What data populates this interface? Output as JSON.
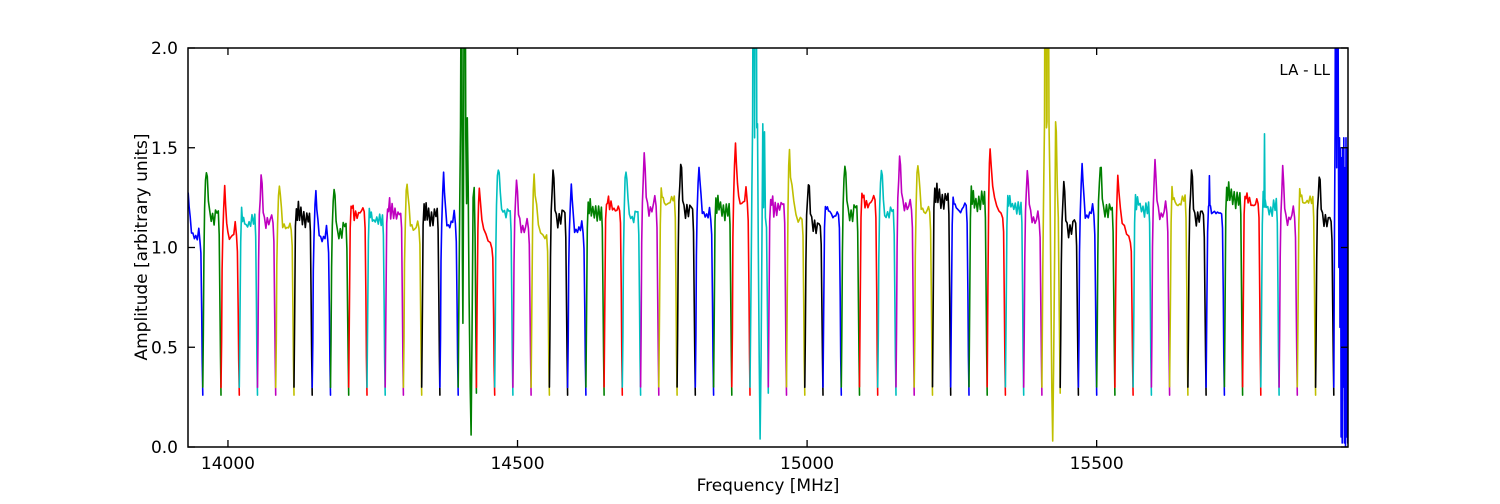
{
  "figure": {
    "background": "#ffffff",
    "frame_color": "#000000"
  },
  "chart_data": {
    "type": "line",
    "title": "",
    "xlabel": "Frequency [MHz]",
    "ylabel": "Amplitude [arbitrary units]",
    "annotation": "LA - LL",
    "xlim": [
      13931,
      15934
    ],
    "ylim": [
      0.0,
      2.0
    ],
    "xticks": [
      14000,
      14500,
      15000,
      15500
    ],
    "yticks": [
      "0.0",
      "0.5",
      "1.0",
      "1.5",
      "2.0"
    ],
    "grid": false,
    "legend": "none",
    "band_start_mhz": 13925,
    "band_width_mhz": 31.5,
    "color_cycle": {
      "b": "#0000ff",
      "g": "#008000",
      "r": "#ff0000",
      "c": "#00bfbf",
      "m": "#bf00bf",
      "y": "#bfbf00",
      "k": "#000000"
    },
    "profiles": {
      "dome": [
        [
          0,
          0.3
        ],
        [
          0.03,
          0.55
        ],
        [
          0.06,
          0.95
        ],
        [
          0.1,
          1.17
        ],
        [
          0.15,
          1.3
        ],
        [
          0.2,
          1.38
        ],
        [
          0.25,
          1.33
        ],
        [
          0.31,
          1.22
        ],
        [
          0.38,
          1.16
        ],
        [
          0.46,
          1.13
        ],
        [
          0.54,
          1.15
        ],
        [
          0.62,
          1.13
        ],
        [
          0.7,
          1.16
        ],
        [
          0.78,
          1.18
        ],
        [
          0.85,
          1.15
        ],
        [
          0.9,
          1.05
        ],
        [
          0.94,
          0.72
        ],
        [
          0.97,
          0.45
        ],
        [
          1,
          0.26
        ]
      ],
      "flat": [
        [
          0,
          0.3
        ],
        [
          0.04,
          0.68
        ],
        [
          0.08,
          1.08
        ],
        [
          0.13,
          1.2
        ],
        [
          0.18,
          1.16
        ],
        [
          0.24,
          1.2
        ],
        [
          0.3,
          1.14
        ],
        [
          0.38,
          1.17
        ],
        [
          0.46,
          1.13
        ],
        [
          0.54,
          1.16
        ],
        [
          0.62,
          1.13
        ],
        [
          0.7,
          1.17
        ],
        [
          0.78,
          1.15
        ],
        [
          0.85,
          1.17
        ],
        [
          0.9,
          1.08
        ],
        [
          0.94,
          0.75
        ],
        [
          0.97,
          0.45
        ],
        [
          1,
          0.26
        ]
      ],
      "saw": [
        [
          0,
          0.3
        ],
        [
          0.04,
          0.75
        ],
        [
          0.08,
          1.15
        ],
        [
          0.12,
          1.32
        ],
        [
          0.16,
          1.38
        ],
        [
          0.22,
          1.3
        ],
        [
          0.3,
          1.22
        ],
        [
          0.4,
          1.16
        ],
        [
          0.52,
          1.12
        ],
        [
          0.64,
          1.08
        ],
        [
          0.76,
          1.06
        ],
        [
          0.85,
          1.08
        ],
        [
          0.9,
          1.0
        ],
        [
          0.94,
          0.7
        ],
        [
          0.97,
          0.42
        ],
        [
          1,
          0.26
        ]
      ]
    },
    "anomalies": {
      "g15": [
        [
          0,
          0.3
        ],
        [
          0.05,
          0.85
        ],
        [
          0.09,
          1.25
        ],
        [
          0.13,
          1.6
        ],
        [
          0.17,
          2.6
        ],
        [
          0.2,
          2.4
        ],
        [
          0.23,
          0.95
        ],
        [
          0.26,
          0.62
        ],
        [
          0.3,
          1.4
        ],
        [
          0.34,
          2.9
        ],
        [
          0.38,
          2.6
        ],
        [
          0.42,
          1.55
        ],
        [
          0.46,
          1.22
        ],
        [
          0.5,
          1.65
        ],
        [
          0.55,
          1.3
        ],
        [
          0.6,
          0.75
        ],
        [
          0.66,
          0.3
        ],
        [
          0.71,
          0.06
        ],
        [
          0.76,
          0.55
        ],
        [
          0.82,
          1.25
        ],
        [
          0.88,
          1.3
        ],
        [
          0.93,
          1.05
        ],
        [
          0.97,
          0.55
        ],
        [
          1,
          0.27
        ]
      ],
      "c31": [
        [
          0,
          0.3
        ],
        [
          0.05,
          0.8
        ],
        [
          0.1,
          1.3
        ],
        [
          0.14,
          1.62
        ],
        [
          0.18,
          2.8
        ],
        [
          0.22,
          2.6
        ],
        [
          0.25,
          1.55
        ],
        [
          0.28,
          2.9
        ],
        [
          0.33,
          2.7
        ],
        [
          0.37,
          1.6
        ],
        [
          0.41,
          1.62
        ],
        [
          0.45,
          1.0
        ],
        [
          0.5,
          0.45
        ],
        [
          0.55,
          0.04
        ],
        [
          0.6,
          0.4
        ],
        [
          0.65,
          1.0
        ],
        [
          0.7,
          1.62
        ],
        [
          0.74,
          1.2
        ],
        [
          0.79,
          1.58
        ],
        [
          0.84,
          1.15
        ],
        [
          0.9,
          1.1
        ],
        [
          0.95,
          0.7
        ],
        [
          1,
          0.27
        ]
      ],
      "y47": [
        [
          0,
          0.3
        ],
        [
          0.05,
          0.9
        ],
        [
          0.1,
          1.35
        ],
        [
          0.14,
          1.62
        ],
        [
          0.18,
          2.9
        ],
        [
          0.22,
          2.7
        ],
        [
          0.25,
          1.6
        ],
        [
          0.28,
          1.63
        ],
        [
          0.31,
          2.95
        ],
        [
          0.35,
          2.75
        ],
        [
          0.39,
          1.62
        ],
        [
          0.44,
          1.3
        ],
        [
          0.49,
          0.8
        ],
        [
          0.54,
          0.3
        ],
        [
          0.59,
          0.03
        ],
        [
          0.64,
          0.4
        ],
        [
          0.7,
          1.0
        ],
        [
          0.75,
          1.63
        ],
        [
          0.79,
          1.58
        ],
        [
          0.84,
          1.3
        ],
        [
          0.9,
          1.15
        ],
        [
          0.95,
          0.65
        ],
        [
          1,
          0.27
        ]
      ],
      "b63": [
        [
          0,
          0.3
        ],
        [
          0.04,
          1.1
        ],
        [
          0.07,
          1.6
        ],
        [
          0.1,
          2.85
        ],
        [
          0.13,
          2.6
        ],
        [
          0.16,
          1.4
        ],
        [
          0.19,
          2.9
        ],
        [
          0.22,
          2.7
        ],
        [
          0.25,
          1.55
        ],
        [
          0.28,
          0.9
        ],
        [
          0.31,
          1.55
        ],
        [
          0.34,
          0.6
        ],
        [
          0.37,
          1.5
        ],
        [
          0.4,
          0.05
        ],
        [
          0.43,
          1.45
        ],
        [
          0.46,
          0.02
        ],
        [
          0.49,
          1.5
        ],
        [
          0.52,
          0.3
        ],
        [
          0.55,
          1.55
        ],
        [
          0.58,
          0.02
        ],
        [
          0.61,
          1.4
        ],
        [
          0.64,
          0.0
        ],
        [
          0.67,
          1.55
        ],
        [
          0.7,
          0.05
        ],
        [
          0.73,
          1.5
        ],
        [
          0.76,
          0.02
        ],
        [
          0.79,
          1.58
        ],
        [
          0.82,
          0.6
        ]
      ]
    },
    "segments": [
      {
        "color": "b",
        "profile": "dome",
        "peak": 1.27
      },
      {
        "color": "g",
        "profile": "dome",
        "peak": 1.4
      },
      {
        "color": "r",
        "profile": "dome",
        "peak": 1.28
      },
      {
        "color": "c",
        "profile": "flat",
        "peak": 1.17
      },
      {
        "color": "m",
        "profile": "dome",
        "peak": 1.35
      },
      {
        "color": "y",
        "profile": "dome",
        "peak": 1.32
      },
      {
        "color": "k",
        "profile": "flat",
        "peak": 1.2
      },
      {
        "color": "b",
        "profile": "dome",
        "peak": 1.27
      },
      {
        "color": "g",
        "profile": "dome",
        "peak": 1.3
      },
      {
        "color": "r",
        "profile": "flat",
        "peak": 1.22
      },
      {
        "color": "c",
        "profile": "flat",
        "peak": 1.18
      },
      {
        "color": "m",
        "profile": "flat",
        "peak": 1.22
      },
      {
        "color": "y",
        "profile": "dome",
        "peak": 1.33
      },
      {
        "color": "k",
        "profile": "flat",
        "peak": 1.21
      },
      {
        "color": "b",
        "profile": "dome",
        "peak": 1.35
      },
      {
        "color": "g",
        "anomaly": "g15"
      },
      {
        "color": "r",
        "profile": "saw",
        "peak": 1.3
      },
      {
        "color": "c",
        "profile": "dome",
        "peak": 1.42
      },
      {
        "color": "m",
        "profile": "dome",
        "peak": 1.33
      },
      {
        "color": "y",
        "profile": "saw",
        "peak": 1.35
      },
      {
        "color": "k",
        "profile": "dome",
        "peak": 1.38
      },
      {
        "color": "b",
        "profile": "dome",
        "peak": 1.3
      },
      {
        "color": "g",
        "profile": "flat",
        "peak": 1.22
      },
      {
        "color": "r",
        "profile": "flat",
        "peak": 1.25
      },
      {
        "color": "c",
        "profile": "dome",
        "peak": 1.4
      },
      {
        "color": "m",
        "profile": "dome",
        "peak": 1.45
      },
      {
        "color": "y",
        "profile": "flat",
        "peak": 1.28
      },
      {
        "color": "k",
        "profile": "dome",
        "peak": 1.42
      },
      {
        "color": "b",
        "profile": "dome",
        "peak": 1.4
      },
      {
        "color": "g",
        "profile": "flat",
        "peak": 1.24
      },
      {
        "color": "r",
        "profile": "dome",
        "peak": 1.5
      },
      {
        "color": "c",
        "anomaly": "c31"
      },
      {
        "color": "m",
        "profile": "flat",
        "peak": 1.25
      },
      {
        "color": "y",
        "profile": "saw",
        "peak": 1.47
      },
      {
        "color": "k",
        "profile": "dome",
        "peak": 1.33
      },
      {
        "color": "b",
        "profile": "flat",
        "peak": 1.22
      },
      {
        "color": "g",
        "profile": "dome",
        "peak": 1.42
      },
      {
        "color": "r",
        "profile": "flat",
        "peak": 1.28
      },
      {
        "color": "c",
        "profile": "dome",
        "peak": 1.4
      },
      {
        "color": "m",
        "profile": "dome",
        "peak": 1.45
      },
      {
        "color": "y",
        "profile": "dome",
        "peak": 1.43
      },
      {
        "color": "k",
        "profile": "flat",
        "peak": 1.3
      },
      {
        "color": "b",
        "profile": "flat",
        "peak": 1.25
      },
      {
        "color": "g",
        "profile": "flat",
        "peak": 1.28
      },
      {
        "color": "r",
        "profile": "saw",
        "peak": 1.5
      },
      {
        "color": "c",
        "profile": "flat",
        "peak": 1.25
      },
      {
        "color": "m",
        "profile": "dome",
        "peak": 1.38
      },
      {
        "color": "y",
        "anomaly": "y47"
      },
      {
        "color": "k",
        "profile": "dome",
        "peak": 1.32
      },
      {
        "color": "b",
        "profile": "dome",
        "peak": 1.4
      },
      {
        "color": "g",
        "profile": "dome",
        "peak": 1.42
      },
      {
        "color": "r",
        "profile": "saw",
        "peak": 1.35
      },
      {
        "color": "c",
        "profile": "flat",
        "peak": 1.25
      },
      {
        "color": "m",
        "profile": "dome",
        "peak": 1.42
      },
      {
        "color": "y",
        "profile": "flat",
        "peak": 1.28
      },
      {
        "color": "k",
        "profile": "dome",
        "peak": 1.38
      },
      {
        "color": "b",
        "profile": "flat",
        "peak": 1.22,
        "spike": [
          0.18,
          1.36
        ]
      },
      {
        "color": "g",
        "profile": "flat",
        "peak": 1.3
      },
      {
        "color": "r",
        "profile": "flat",
        "peak": 1.28
      },
      {
        "color": "c",
        "profile": "flat",
        "peak": 1.25,
        "spike": [
          0.2,
          1.57
        ]
      },
      {
        "color": "m",
        "profile": "dome",
        "peak": 1.38
      },
      {
        "color": "y",
        "profile": "flat",
        "peak": 1.28
      },
      {
        "color": "k",
        "profile": "dome",
        "peak": 1.36
      },
      {
        "color": "b",
        "anomaly": "b63"
      }
    ]
  }
}
